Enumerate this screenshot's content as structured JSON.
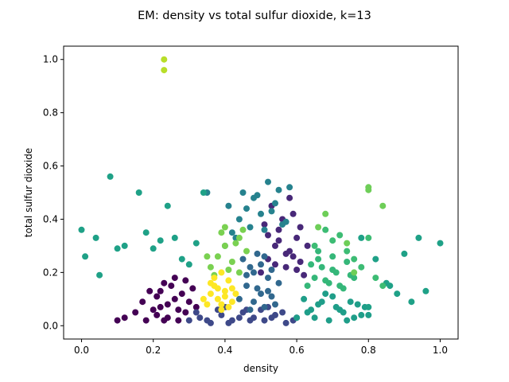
{
  "chart_data": {
    "type": "scatter",
    "title": "EM: density vs total sulfur dioxide, k=13",
    "xlabel": "density",
    "ylabel": "total sulfur dioxide",
    "xlim": [
      -0.05,
      1.05
    ],
    "ylim": [
      -0.05,
      1.05
    ],
    "xticks": [
      0.0,
      0.2,
      0.4,
      0.6,
      0.8,
      1.0
    ],
    "yticks": [
      0.0,
      0.2,
      0.4,
      0.6,
      0.8,
      1.0
    ],
    "xtick_labels": [
      "0.0",
      "0.2",
      "0.4",
      "0.6",
      "0.8",
      "1.0"
    ],
    "ytick_labels": [
      "0.0",
      "0.2",
      "0.4",
      "0.6",
      "0.8",
      "1.0"
    ],
    "grid": false,
    "legend": "none",
    "colormap": "viridis",
    "series": [
      {
        "color": "#440154",
        "x": [
          0.1,
          0.12,
          0.15,
          0.17,
          0.18,
          0.2,
          0.21,
          0.22,
          0.23,
          0.24,
          0.25,
          0.26,
          0.27,
          0.28,
          0.29,
          0.3,
          0.31,
          0.32,
          0.21,
          0.24,
          0.27,
          0.29,
          0.23,
          0.26,
          0.19,
          0.22
        ],
        "y": [
          0.02,
          0.03,
          0.05,
          0.09,
          0.02,
          0.06,
          0.11,
          0.13,
          0.02,
          0.08,
          0.15,
          0.1,
          0.06,
          0.12,
          0.17,
          0.09,
          0.14,
          0.07,
          0.04,
          0.03,
          0.02,
          0.05,
          0.16,
          0.18,
          0.13,
          0.07
        ]
      },
      {
        "color": "#482878",
        "x": [
          0.5,
          0.52,
          0.54,
          0.55,
          0.57,
          0.58,
          0.6,
          0.61,
          0.62,
          0.56,
          0.59,
          0.53,
          0.51,
          0.63,
          0.58,
          0.6,
          0.55,
          0.57,
          0.54,
          0.61,
          0.52,
          0.59
        ],
        "y": [
          0.2,
          0.25,
          0.3,
          0.36,
          0.22,
          0.28,
          0.33,
          0.24,
          0.19,
          0.4,
          0.42,
          0.45,
          0.38,
          0.3,
          0.48,
          0.21,
          0.32,
          0.27,
          0.23,
          0.37,
          0.34,
          0.26
        ]
      },
      {
        "color": "#3e4989",
        "x": [
          0.3,
          0.33,
          0.36,
          0.39,
          0.42,
          0.45,
          0.48,
          0.51,
          0.54,
          0.57,
          0.6,
          0.32,
          0.35,
          0.38,
          0.41,
          0.44,
          0.47,
          0.5,
          0.53,
          0.56,
          0.59,
          0.4,
          0.46,
          0.52
        ],
        "y": [
          0.02,
          0.03,
          0.01,
          0.04,
          0.02,
          0.05,
          0.03,
          0.02,
          0.04,
          0.01,
          0.03,
          0.05,
          0.02,
          0.06,
          0.01,
          0.03,
          0.02,
          0.06,
          0.03,
          0.05,
          0.02,
          0.07,
          0.06,
          0.07
        ]
      },
      {
        "color": "#31688e",
        "x": [
          0.44,
          0.46,
          0.48,
          0.5,
          0.52,
          0.54,
          0.45,
          0.47,
          0.49,
          0.51,
          0.53,
          0.55,
          0.46,
          0.48,
          0.5,
          0.52,
          0.49,
          0.47,
          0.51,
          0.53
        ],
        "y": [
          0.1,
          0.15,
          0.2,
          0.12,
          0.18,
          0.08,
          0.25,
          0.22,
          0.14,
          0.26,
          0.11,
          0.16,
          0.19,
          0.09,
          0.23,
          0.13,
          0.27,
          0.06,
          0.07,
          0.21
        ]
      },
      {
        "color": "#26828e",
        "x": [
          0.4,
          0.42,
          0.44,
          0.46,
          0.48,
          0.5,
          0.52,
          0.54,
          0.56,
          0.41,
          0.43,
          0.45,
          0.47,
          0.49,
          0.51,
          0.53,
          0.55,
          0.57,
          0.35,
          0.58
        ],
        "y": [
          0.3,
          0.35,
          0.4,
          0.44,
          0.48,
          0.42,
          0.54,
          0.46,
          0.38,
          0.45,
          0.33,
          0.5,
          0.37,
          0.49,
          0.36,
          0.43,
          0.51,
          0.39,
          0.5,
          0.52
        ]
      },
      {
        "color": "#1f9e89",
        "x": [
          0.6,
          0.63,
          0.66,
          0.69,
          0.72,
          0.75,
          0.78,
          0.62,
          0.65,
          0.68,
          0.71,
          0.74,
          0.77,
          0.8,
          0.64,
          0.67,
          0.7,
          0.73,
          0.76,
          0.79
        ],
        "y": [
          0.03,
          0.05,
          0.08,
          0.02,
          0.06,
          0.09,
          0.04,
          0.1,
          0.03,
          0.12,
          0.07,
          0.02,
          0.08,
          0.04,
          0.06,
          0.09,
          0.11,
          0.05,
          0.03,
          0.07
        ]
      },
      {
        "color": "#35b779",
        "x": [
          0.63,
          0.65,
          0.67,
          0.69,
          0.71,
          0.73,
          0.75,
          0.64,
          0.66,
          0.68,
          0.7,
          0.72,
          0.74,
          0.76,
          0.66,
          0.7
        ],
        "y": [
          0.15,
          0.18,
          0.22,
          0.16,
          0.2,
          0.14,
          0.19,
          0.23,
          0.25,
          0.17,
          0.21,
          0.15,
          0.24,
          0.18,
          0.28,
          0.26
        ]
      },
      {
        "color": "#1fa187",
        "x": [
          0.0,
          0.01,
          0.04,
          0.05,
          0.08,
          0.1,
          0.12,
          0.16,
          0.18,
          0.2,
          0.22,
          0.24,
          0.26,
          0.28,
          0.3,
          0.32,
          0.34,
          0.85,
          0.88,
          0.9,
          0.92,
          0.94,
          0.96,
          1.0,
          0.78,
          0.82,
          0.86,
          0.8
        ],
        "y": [
          0.36,
          0.26,
          0.33,
          0.19,
          0.56,
          0.29,
          0.3,
          0.5,
          0.35,
          0.29,
          0.32,
          0.45,
          0.33,
          0.25,
          0.23,
          0.31,
          0.5,
          0.16,
          0.12,
          0.27,
          0.09,
          0.33,
          0.13,
          0.31,
          0.33,
          0.25,
          0.15,
          0.07
        ]
      },
      {
        "color": "#3dbc74",
        "x": [
          0.65,
          0.68,
          0.7,
          0.72,
          0.74,
          0.76,
          0.78,
          0.8,
          0.82,
          0.84
        ],
        "y": [
          0.3,
          0.36,
          0.32,
          0.34,
          0.28,
          0.25,
          0.22,
          0.33,
          0.18,
          0.15
        ]
      },
      {
        "color": "#6ece58",
        "x": [
          0.66,
          0.68,
          0.8,
          0.8,
          0.84,
          0.76,
          0.74
        ],
        "y": [
          0.37,
          0.42,
          0.52,
          0.51,
          0.45,
          0.2,
          0.31
        ]
      },
      {
        "color": "#7ad151",
        "x": [
          0.36,
          0.38,
          0.4,
          0.42,
          0.44,
          0.46,
          0.37,
          0.39,
          0.41,
          0.43,
          0.45,
          0.35,
          0.4,
          0.44
        ],
        "y": [
          0.22,
          0.26,
          0.3,
          0.24,
          0.33,
          0.28,
          0.19,
          0.35,
          0.21,
          0.31,
          0.36,
          0.26,
          0.37,
          0.2
        ]
      },
      {
        "color": "#b8de29",
        "x": [
          0.23,
          0.23
        ],
        "y": [
          1.0,
          0.96
        ]
      },
      {
        "color": "#fde725",
        "x": [
          0.35,
          0.36,
          0.37,
          0.38,
          0.39,
          0.4,
          0.41,
          0.42,
          0.37,
          0.39,
          0.41,
          0.36,
          0.38,
          0.4,
          0.42,
          0.34,
          0.43,
          0.39
        ],
        "y": [
          0.08,
          0.12,
          0.15,
          0.1,
          0.06,
          0.13,
          0.17,
          0.09,
          0.18,
          0.2,
          0.07,
          0.16,
          0.14,
          0.11,
          0.14,
          0.1,
          0.12,
          0.08
        ]
      }
    ]
  }
}
